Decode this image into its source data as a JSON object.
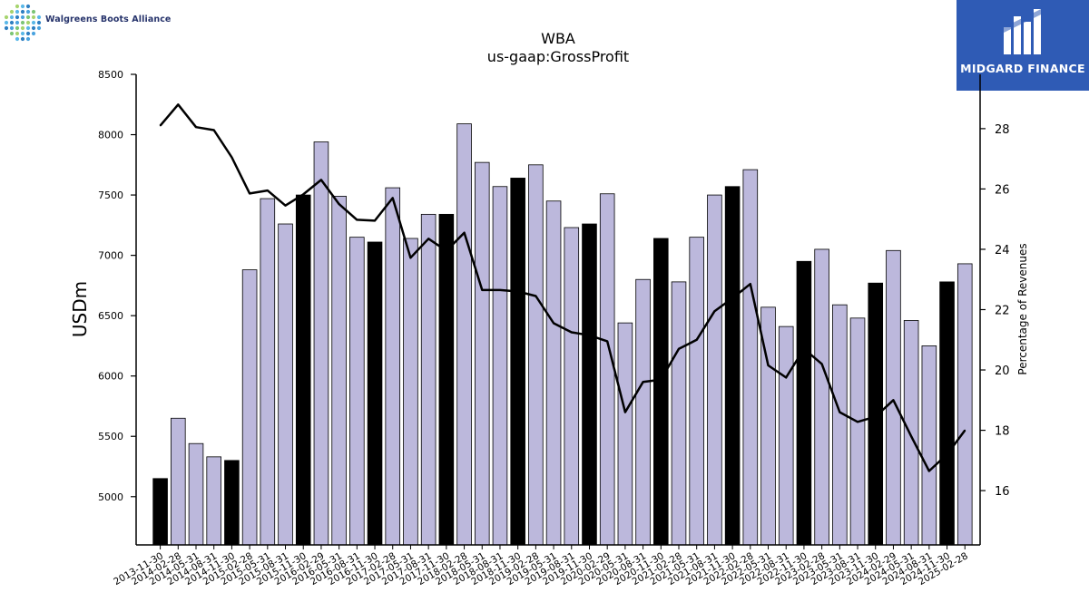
{
  "brand": {
    "company_logo_text": "Walgreens Boots Alliance",
    "publisher_name": "MIDGARD FINANCE"
  },
  "colors": {
    "bar_regular": "#bcb8dc",
    "bar_highlight": "#000000",
    "line": "#000000",
    "brand_box": "#2f5bb5"
  },
  "chart_data": {
    "type": "bar",
    "title": "WBA",
    "subtitle": "us-gaap:GrossProfit",
    "ylabel": "USDm",
    "y2label": "Percentage of Revenues",
    "ylim": [
      4600,
      8500
    ],
    "y2lim": [
      14.2,
      29.8
    ],
    "yticks": [
      5000,
      5500,
      6000,
      6500,
      7000,
      7500,
      8000,
      8500
    ],
    "y2ticks": [
      16,
      18,
      20,
      22,
      24,
      26,
      28
    ],
    "grid": false,
    "categories": [
      "2013-11-30",
      "2014-02-28",
      "2014-05-31",
      "2014-08-31",
      "2014-11-30",
      "2015-02-28",
      "2015-05-31",
      "2015-08-31",
      "2015-11-30",
      "2016-02-29",
      "2016-05-31",
      "2016-08-31",
      "2016-11-30",
      "2017-02-28",
      "2017-05-31",
      "2017-08-31",
      "2017-11-30",
      "2018-02-28",
      "2018-05-31",
      "2018-08-31",
      "2018-11-30",
      "2019-02-28",
      "2019-05-31",
      "2019-08-31",
      "2019-11-30",
      "2020-02-29",
      "2020-05-31",
      "2020-08-31",
      "2020-11-30",
      "2021-02-28",
      "2021-05-31",
      "2021-08-31",
      "2021-11-30",
      "2022-02-28",
      "2022-05-31",
      "2022-08-31",
      "2022-11-30",
      "2023-02-28",
      "2023-05-31",
      "2023-08-31",
      "2023-11-30",
      "2024-02-29",
      "2024-05-31",
      "2024-08-31",
      "2024-11-30",
      "2025-02-28"
    ],
    "series": [
      {
        "kind": "bar",
        "values": [
          5150,
          5650,
          5440,
          5330,
          5300,
          6880,
          7470,
          7260,
          7500,
          7940,
          7490,
          7150,
          7110,
          7560,
          7140,
          7340,
          7340,
          8090,
          7770,
          7570,
          7640,
          7750,
          7450,
          7230,
          7260,
          7510,
          6440,
          6800,
          7140,
          6780,
          7150,
          7500,
          7570,
          7710,
          6570,
          6410,
          6950,
          7050,
          6590,
          6480,
          6770,
          7040,
          6460,
          6250,
          6780,
          6930
        ],
        "highlighted": [
          true,
          false,
          false,
          false,
          true,
          false,
          false,
          false,
          true,
          false,
          false,
          false,
          true,
          false,
          false,
          false,
          true,
          false,
          false,
          false,
          true,
          false,
          false,
          false,
          true,
          false,
          false,
          false,
          true,
          false,
          false,
          false,
          true,
          false,
          false,
          false,
          true,
          false,
          false,
          false,
          true,
          false,
          false,
          false,
          true,
          false
        ]
      },
      {
        "kind": "line",
        "axis": "right",
        "values": [
          28.1,
          28.8,
          28.05,
          27.95,
          27.05,
          25.85,
          25.95,
          25.45,
          25.82,
          26.3,
          25.5,
          24.98,
          24.95,
          25.7,
          23.72,
          24.35,
          23.95,
          24.55,
          22.65,
          22.65,
          22.6,
          22.45,
          21.55,
          21.25,
          21.15,
          20.95,
          18.6,
          19.6,
          19.68,
          20.7,
          21.0,
          21.95,
          22.38,
          22.85,
          20.15,
          19.75,
          20.7,
          20.2,
          18.6,
          18.28,
          18.45,
          19.0,
          17.8,
          16.65,
          17.2,
          18.0
        ]
      }
    ]
  }
}
